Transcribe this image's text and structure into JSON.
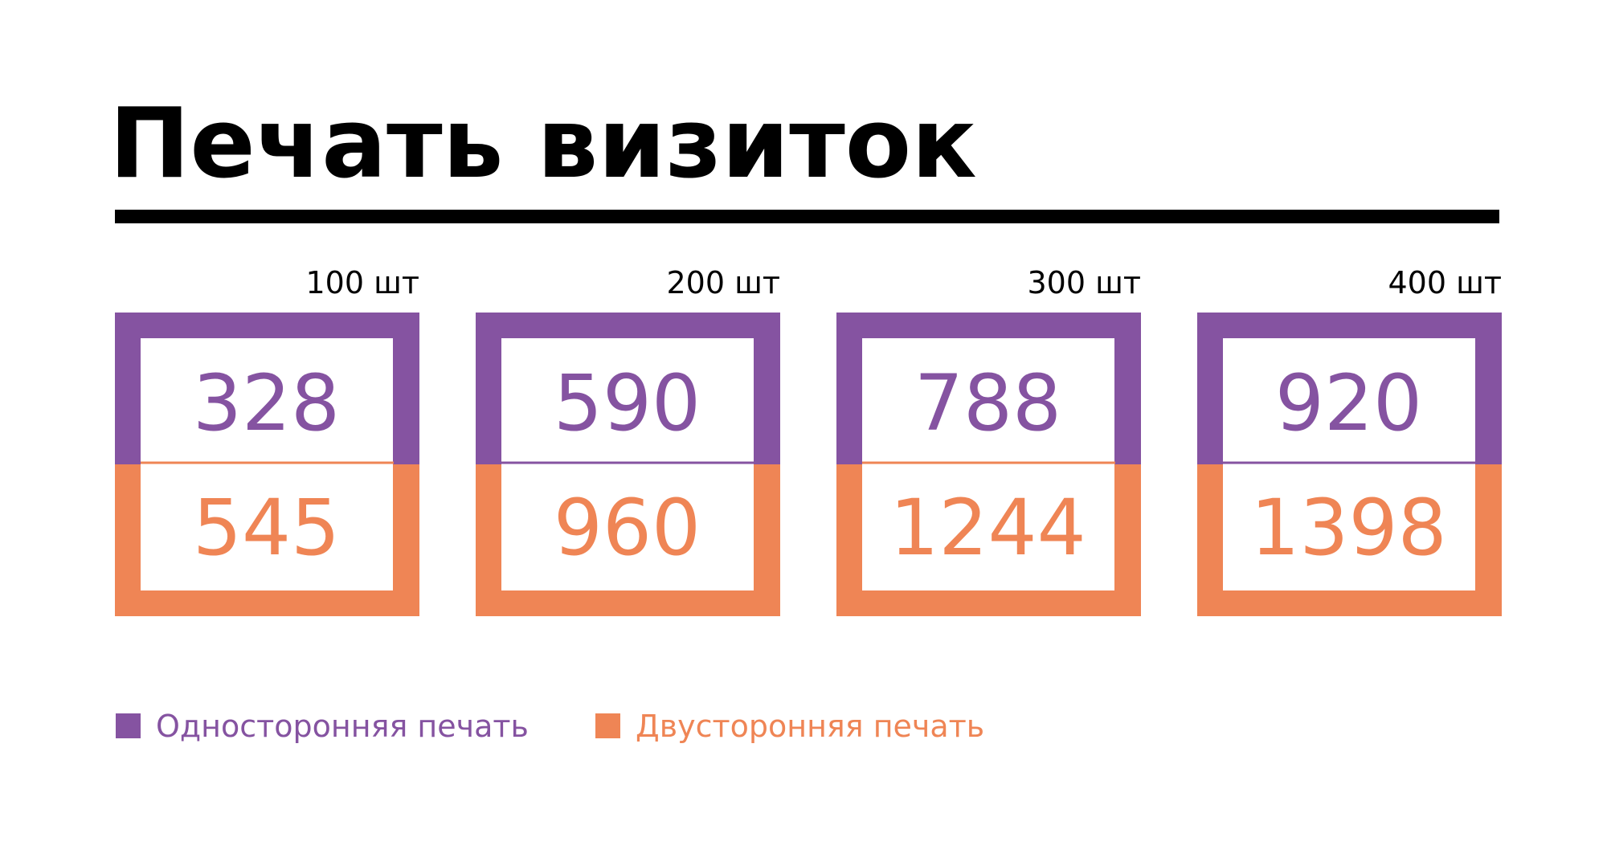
{
  "title": "Печать визиток",
  "legend": [
    {
      "name": "Односторонняя печать",
      "color": "#8553a1"
    },
    {
      "name": "Двусторонняя печать",
      "color": "#ef8555"
    }
  ],
  "cards": [
    {
      "quantity": "100 шт",
      "single": 328,
      "double": 545
    },
    {
      "quantity": "200 шт",
      "single": 590,
      "double": 960
    },
    {
      "quantity": "300 шт",
      "single": 788,
      "double": 1244
    },
    {
      "quantity": "400 шт",
      "single": 920,
      "double": 1398
    }
  ]
}
